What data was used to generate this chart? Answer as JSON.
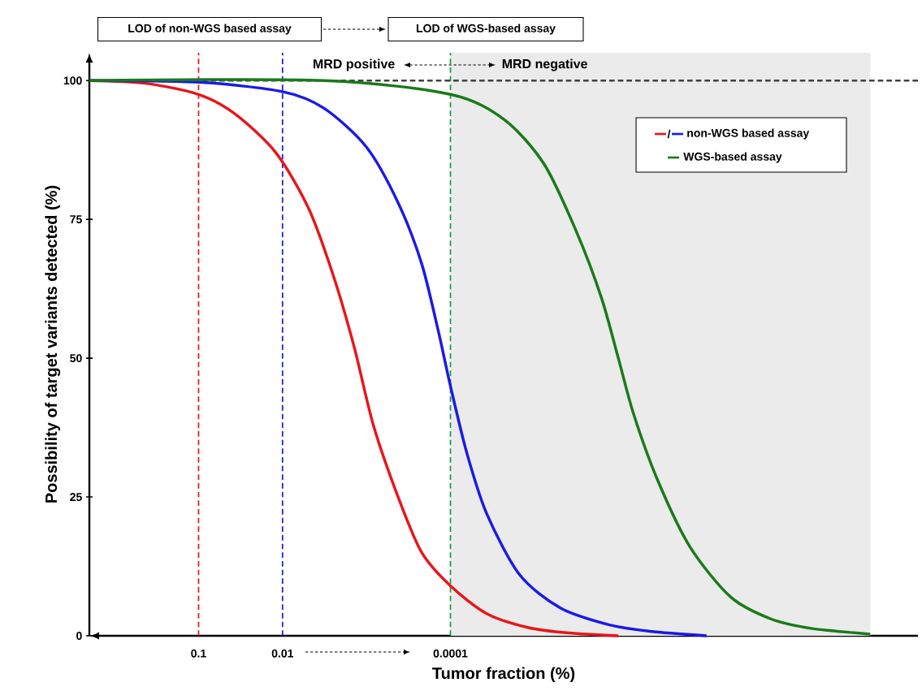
{
  "chart_data": {
    "type": "line",
    "xlabel": "Tumor fraction (%)",
    "ylabel": "Possibility of target variants detected (%)",
    "xlim": [
      2,
      2.7e-10
    ],
    "ylim": [
      0,
      105
    ],
    "log": "x",
    "xticks": [
      0.1,
      0.01,
      0.0001
    ],
    "yticks": [
      0,
      25,
      50,
      75,
      100
    ],
    "grid": false,
    "legend": "top right",
    "marker": "none",
    "line_style": "solid",
    "series": [
      {
        "color": "#e8161b",
        "x": [
          2,
          0.43,
          0.1,
          0.037,
          0.012,
          0.0049,
          0.0025,
          0.0014,
          0.00083,
          0.00042,
          0.00022,
          0.0001,
          3.7e-05,
          1.2e-05,
          3.9e-06,
          1e-06
        ],
        "values": [
          100,
          99.5,
          97.5,
          94,
          87,
          77,
          65,
          52,
          38,
          25,
          15,
          9,
          4,
          1.5,
          0.5,
          0
        ]
      },
      {
        "name": "non-WGS based assay",
        "color": "#1a1ae6",
        "x": [
          2,
          0.1,
          0.01,
          0.0032,
          0.001,
          0.00042,
          0.00022,
          0.00014,
          0.0001,
          6.4e-05,
          3.7e-05,
          1.5e-05,
          4.9e-06,
          1.3e-06,
          4.2e-07,
          8.9e-08
        ],
        "values": [
          100,
          99.7,
          98,
          95,
          88,
          78,
          67,
          55,
          45,
          33,
          22,
          11,
          5,
          2,
          0.8,
          0
        ]
      },
      {
        "name": "WGS-based assay",
        "color": "#1a7a1a",
        "x": [
          2,
          0.0032,
          0.0001,
          2.3e-05,
          7.7e-06,
          3.2e-06,
          1.6e-06,
          1e-06,
          6.6e-07,
          3.4e-07,
          1.4e-07,
          4.6e-08,
          1.5e-08,
          4.9e-09,
          1e-09
        ],
        "values": [
          100,
          100,
          97.5,
          93,
          85,
          73,
          61,
          50,
          40,
          28,
          16,
          7,
          3,
          1.3,
          0.3
        ]
      }
    ],
    "ref_lines": [
      {
        "axis": "x",
        "value": 0.1,
        "color": "#e8161b",
        "line_style": "dashed"
      },
      {
        "axis": "x",
        "value": 0.01,
        "color": "#1a1ae6",
        "line_style": "dashed"
      },
      {
        "axis": "x",
        "value": 0.0001,
        "color": "#1a9a4a",
        "line_style": "dashed"
      },
      {
        "axis": "y",
        "value": 100,
        "color": "#404040",
        "line_style": "dashed"
      }
    ],
    "bands": [
      {
        "axis": "x",
        "from": 0.0001,
        "to": 1e-09,
        "color": "#ebebeb"
      }
    ],
    "annotations": [
      "LOD of non-WGS based assay",
      "LOD of WGS-based assay",
      "MRD positive",
      "MRD negative",
      "/"
    ]
  }
}
